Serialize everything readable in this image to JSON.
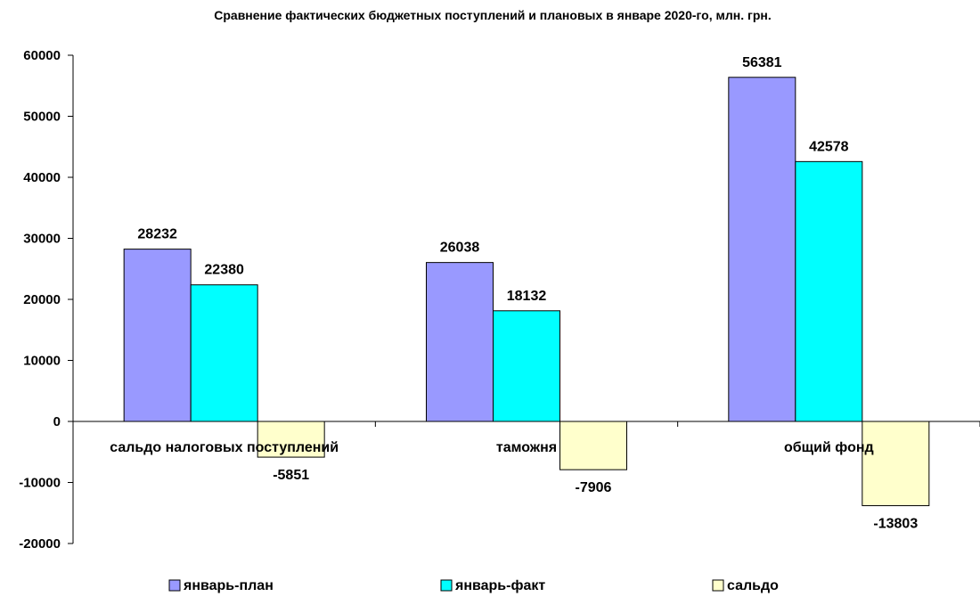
{
  "chart_data": {
    "type": "bar",
    "title": "Сравнение фактических бюджетных поступлений и плановых в январе 2020-го, млн. грн.",
    "xlabel": "",
    "ylabel": "",
    "categories": [
      "сальдо налоговых поступлений",
      "таможня",
      "общий фонд"
    ],
    "series": [
      {
        "name": "январь-план",
        "values": [
          28232,
          26038,
          56381
        ],
        "color": "#9999FF"
      },
      {
        "name": "январь-факт",
        "values": [
          22380,
          18132,
          42578
        ],
        "color": "#00FFFF"
      },
      {
        "name": "сальдо",
        "values": [
          -5851,
          -7906,
          -13803
        ],
        "color": "#FFFFCC"
      }
    ],
    "ylim": [
      -20000,
      60000
    ],
    "yticks": [
      60000,
      50000,
      40000,
      30000,
      20000,
      10000,
      0,
      -10000,
      -20000
    ],
    "grid": false,
    "legend_position": "bottom"
  }
}
